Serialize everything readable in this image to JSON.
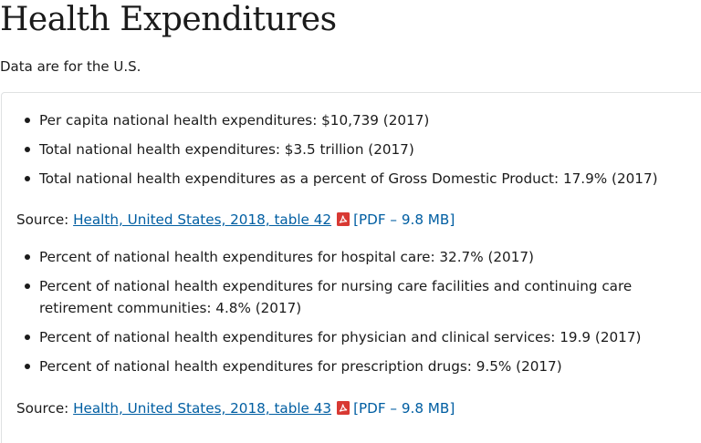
{
  "header": {
    "title": "Health Expenditures",
    "subtitle": "Data are for the U.S."
  },
  "section_a": {
    "items": [
      "Per capita national health expenditures: $10,739 (2017)",
      "Total national health expenditures: $3.5 trillion (2017)",
      "Total national health expenditures as a percent of Gross Domestic Product: 17.9% (2017)"
    ],
    "source_label": "Source:",
    "source_link": "Health, United States, 2018, table 42",
    "pdf_note": "[PDF – 9.8 MB]",
    "pdf_icon": "pdf-file-icon"
  },
  "section_b": {
    "items": [
      "Percent of national health expenditures for hospital care: 32.7% (2017)",
      "Percent of national health expenditures for nursing care facilities and continuing care retirement communities: 4.8% (2017)",
      "Percent of national health expenditures for physician and clinical services: 19.9 (2017)",
      "Percent of national health expenditures for prescription drugs: 9.5% (2017)"
    ],
    "source_label": "Source:",
    "source_link": "Health, United States, 2018, table 43",
    "pdf_note": "[PDF – 9.8 MB]",
    "pdf_icon": "pdf-file-icon"
  },
  "colors": {
    "link": "#005ea2",
    "pdf_icon": "#d83933",
    "text": "#1b1b1b",
    "card_border": "#dfe1e2"
  }
}
